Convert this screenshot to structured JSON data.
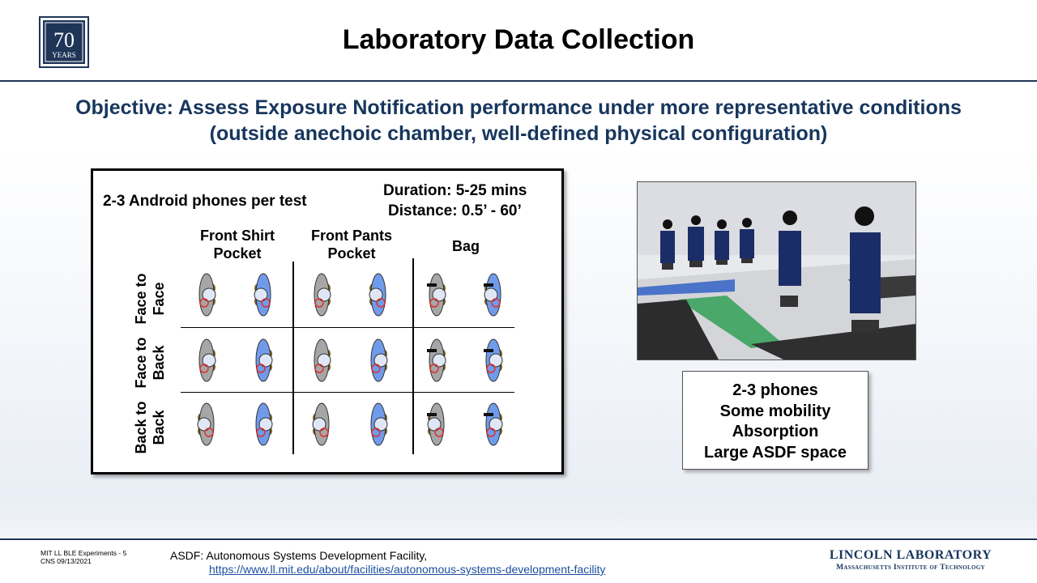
{
  "header": {
    "logo_text_number": "70",
    "logo_text_word": "YEARS",
    "title": "Laboratory Data Collection"
  },
  "objective": {
    "line1": "Objective: Assess Exposure Notification performance under more representative conditions",
    "line2": "(outside anechoic chamber, well-defined physical configuration)"
  },
  "test_panel": {
    "phones_per_test": "2-3 Android phones per test",
    "duration": "Duration:  5-25 mins",
    "distance": "Distance: 0.5’ - 60’",
    "columns": [
      {
        "line1": "Front Shirt",
        "line2": "Pocket"
      },
      {
        "line1": "Front Pants",
        "line2": "Pocket"
      },
      {
        "line1": "Bag",
        "line2": ""
      }
    ],
    "rows": [
      {
        "line1": "Face to",
        "line2": "Face"
      },
      {
        "line1": "Face to",
        "line2": "Back"
      },
      {
        "line1": "Back to",
        "line2": "Back"
      }
    ],
    "colors": {
      "person_a": "#a6a6a6",
      "person_b": "#6f9bea",
      "phone_ring": "#e03030",
      "arm": "#7a5a1a"
    }
  },
  "summary": {
    "items": [
      "2-3 phones",
      "Some mobility",
      "Absorption",
      "Large ASDF space"
    ]
  },
  "footer": {
    "slide_ref": "MIT LL BLE Experiments - 5",
    "date_ref": "CNS 09/13/2021",
    "note": "ASDF: Autonomous Systems Development Facility,",
    "link": "https://www.ll.mit.edu/about/facilities/autonomous-systems-development-facility",
    "org_name": "LINCOLN LABORATORY",
    "org_sub": "Massachusetts Institute of Technology"
  }
}
